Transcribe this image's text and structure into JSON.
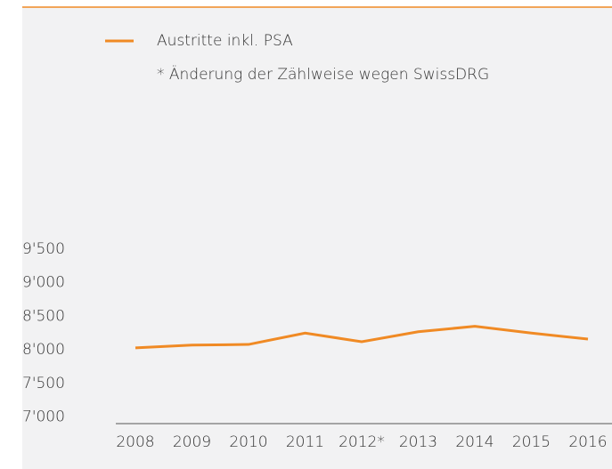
{
  "chart_data": {
    "type": "line",
    "categories": [
      "2008",
      "2009",
      "2010",
      "2011",
      "2012*",
      "2013",
      "2014",
      "2015",
      "2016"
    ],
    "series": [
      {
        "name": "Austritte inkl. PSA",
        "color": "#f08a24",
        "values": [
          8030,
          8070,
          8080,
          8250,
          8120,
          8270,
          8350,
          8250,
          8160
        ]
      }
    ],
    "annotation": "* Änderung der Zählweise wegen SwissDRG",
    "ylim": [
      6900,
      9500
    ],
    "yticks": [
      {
        "value": 7000,
        "label": "7'000"
      },
      {
        "value": 7500,
        "label": "7'500"
      },
      {
        "value": 8000,
        "label": "8'000"
      },
      {
        "value": 8500,
        "label": "8'500"
      },
      {
        "value": 9000,
        "label": "9'000"
      },
      {
        "value": 9500,
        "label": "9'500"
      }
    ],
    "grid": false
  }
}
